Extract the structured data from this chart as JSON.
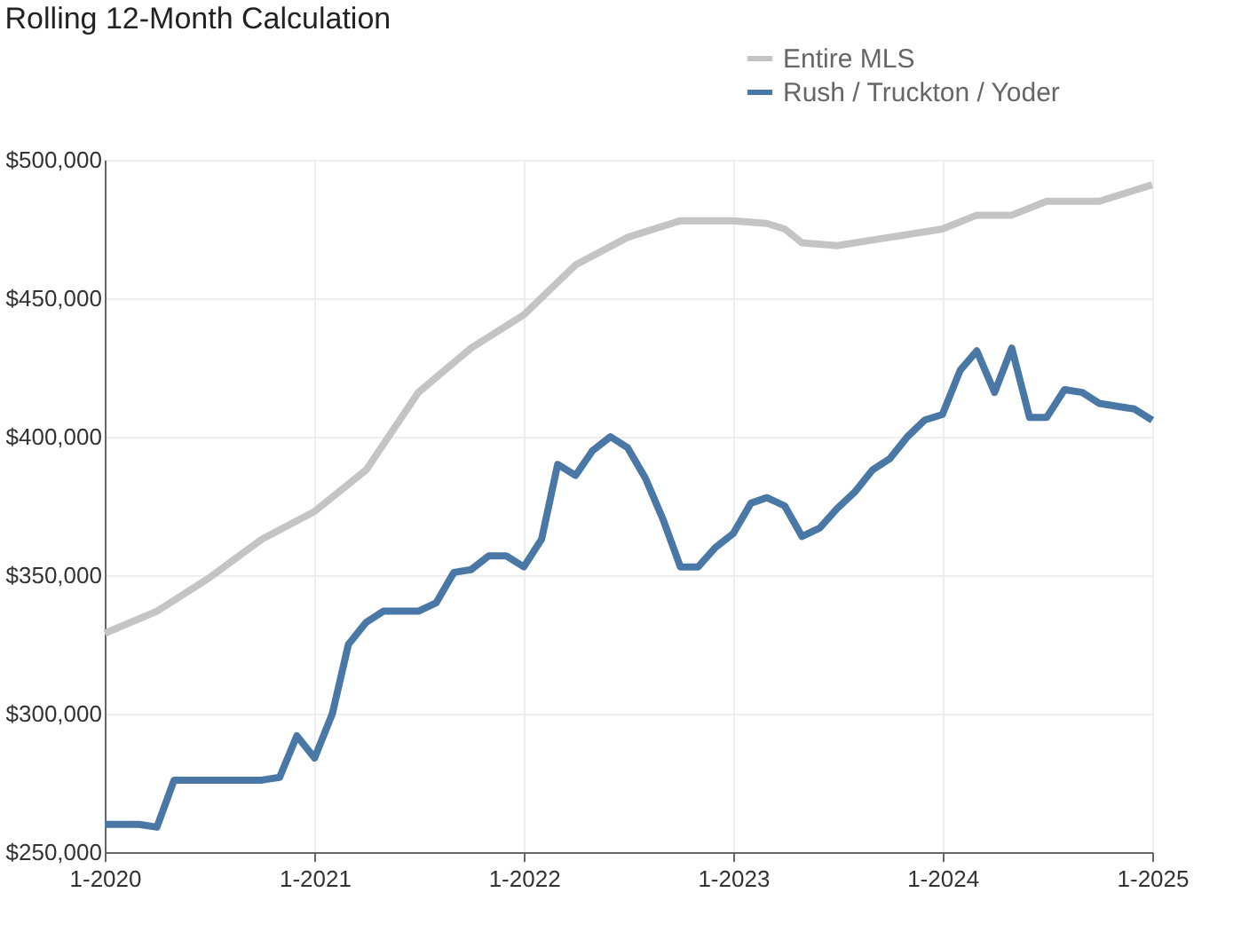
{
  "chart_data": {
    "type": "line",
    "title": "Rolling 12-Month Calculation",
    "xlim": [
      "2020-01",
      "2025-01"
    ],
    "xticks": [
      {
        "value": "2020-01",
        "label": "1-2020"
      },
      {
        "value": "2021-01",
        "label": "1-2021"
      },
      {
        "value": "2022-01",
        "label": "1-2022"
      },
      {
        "value": "2023-01",
        "label": "1-2023"
      },
      {
        "value": "2024-01",
        "label": "1-2024"
      },
      {
        "value": "2025-01",
        "label": "1-2025"
      }
    ],
    "ylim": [
      250000,
      500000
    ],
    "yticks": [
      {
        "value": 250000,
        "label": "$250,000"
      },
      {
        "value": 300000,
        "label": "$300,000"
      },
      {
        "value": 350000,
        "label": "$350,000"
      },
      {
        "value": 400000,
        "label": "$400,000"
      },
      {
        "value": 450000,
        "label": "$450,000"
      },
      {
        "value": 500000,
        "label": "$500,000"
      }
    ],
    "grid": true,
    "legend": "top right",
    "marker": "none",
    "line_style": "solid",
    "series": [
      {
        "name": "Entire MLS",
        "color": "#c4c4c4",
        "x": [
          "2020-01",
          "2020-04",
          "2020-07",
          "2020-10",
          "2021-01",
          "2021-04",
          "2021-07",
          "2021-10",
          "2022-01",
          "2022-04",
          "2022-07",
          "2022-10",
          "2023-01",
          "2023-03",
          "2023-04",
          "2023-05",
          "2023-07",
          "2023-10",
          "2024-01",
          "2024-03",
          "2024-05",
          "2024-07",
          "2024-10",
          "2025-01"
        ],
        "values": [
          329000,
          337000,
          349000,
          363000,
          373000,
          388000,
          416000,
          432000,
          444000,
          462000,
          472000,
          478000,
          478000,
          477000,
          475000,
          470000,
          469000,
          472000,
          475000,
          480000,
          480000,
          485000,
          485000,
          491000
        ]
      },
      {
        "name": "Rush / Truckton / Yoder",
        "color": "#4a78a6",
        "x": [
          "2020-01",
          "2020-02",
          "2020-03",
          "2020-04",
          "2020-05",
          "2020-06",
          "2020-07",
          "2020-08",
          "2020-09",
          "2020-10",
          "2020-11",
          "2020-12",
          "2021-01",
          "2021-02",
          "2021-03",
          "2021-04",
          "2021-05",
          "2021-06",
          "2021-07",
          "2021-08",
          "2021-09",
          "2021-10",
          "2021-11",
          "2021-12",
          "2022-01",
          "2022-02",
          "2022-03",
          "2022-04",
          "2022-05",
          "2022-06",
          "2022-07",
          "2022-08",
          "2022-09",
          "2022-10",
          "2022-11",
          "2022-12",
          "2023-01",
          "2023-02",
          "2023-03",
          "2023-04",
          "2023-05",
          "2023-06",
          "2023-07",
          "2023-08",
          "2023-09",
          "2023-10",
          "2023-11",
          "2023-12",
          "2024-01",
          "2024-02",
          "2024-03",
          "2024-04",
          "2024-05",
          "2024-06",
          "2024-07",
          "2024-08",
          "2024-09",
          "2024-10",
          "2024-11",
          "2024-12",
          "2025-01"
        ],
        "values": [
          260000,
          260000,
          260000,
          259000,
          276000,
          276000,
          276000,
          276000,
          276000,
          276000,
          277000,
          292000,
          284000,
          300000,
          325000,
          333000,
          337000,
          337000,
          337000,
          340000,
          351000,
          352000,
          357000,
          357000,
          353000,
          363000,
          390000,
          386000,
          395000,
          400000,
          396000,
          385000,
          370000,
          353000,
          353000,
          360000,
          365000,
          376000,
          378000,
          375000,
          364000,
          367000,
          374000,
          380000,
          388000,
          392000,
          400000,
          406000,
          408000,
          424000,
          431000,
          416000,
          432000,
          407000,
          407000,
          417000,
          416000,
          412000,
          411000,
          410000,
          406000
        ]
      }
    ]
  }
}
